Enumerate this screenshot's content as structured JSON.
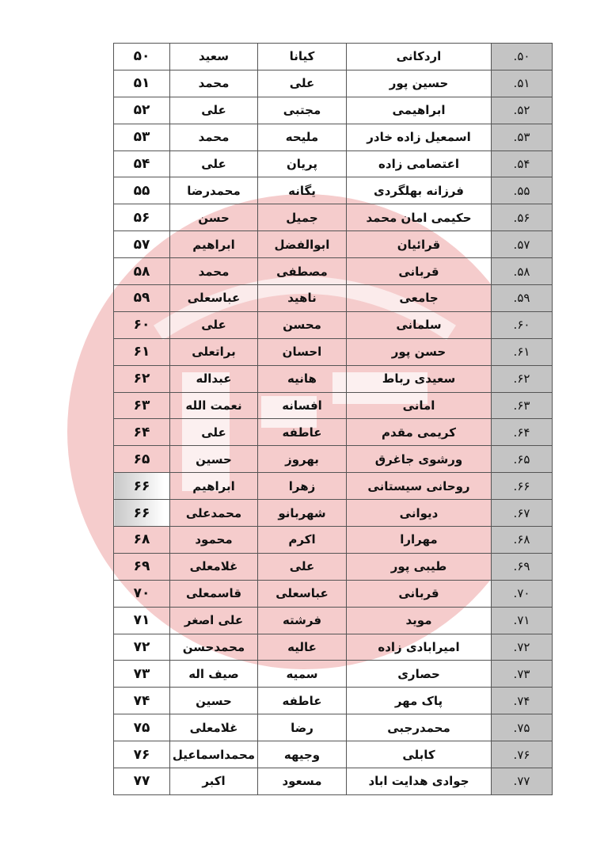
{
  "watermark": {
    "color": "#e06060"
  },
  "rows": [
    {
      "idx": "۵۰.",
      "last": "اردکانی",
      "first": "کیانا",
      "father": "سعید",
      "num": "۵۰"
    },
    {
      "idx": "۵۱.",
      "last": "حسین پور",
      "first": "علی",
      "father": "محمد",
      "num": "۵۱"
    },
    {
      "idx": "۵۲.",
      "last": "ابراهیمی",
      "first": "مجتبی",
      "father": "علی",
      "num": "۵۲"
    },
    {
      "idx": "۵۳.",
      "last": "اسمعیل زاده خادر",
      "first": "ملیحه",
      "father": "محمد",
      "num": "۵۳"
    },
    {
      "idx": "۵۴.",
      "last": "اعتصامی زاده",
      "first": "پریان",
      "father": "علی",
      "num": "۵۴"
    },
    {
      "idx": "۵۵.",
      "last": "فرزانه بهلگردی",
      "first": "یگانه",
      "father": "محمدرضا",
      "num": "۵۵"
    },
    {
      "idx": "۵۶.",
      "last": "حکیمی امان محمد",
      "first": "جمیل",
      "father": "حسن",
      "num": "۵۶"
    },
    {
      "idx": "۵۷.",
      "last": "قرائیان",
      "first": "ابوالفضل",
      "father": "ابراهیم",
      "num": "۵۷"
    },
    {
      "idx": "۵۸.",
      "last": "قربانی",
      "first": "مصطفی",
      "father": "محمد",
      "num": "۵۸"
    },
    {
      "idx": "۵۹.",
      "last": "جامعی",
      "first": "ناهید",
      "father": "عباسعلی",
      "num": "۵۹"
    },
    {
      "idx": "۶۰.",
      "last": "سلمانی",
      "first": "محسن",
      "father": "علی",
      "num": "۶۰"
    },
    {
      "idx": "۶۱.",
      "last": "حسن پور",
      "first": "احسان",
      "father": "براتعلی",
      "num": "۶۱"
    },
    {
      "idx": "۶۲.",
      "last": "سعیدی رباط",
      "first": "هانیه",
      "father": "عبداله",
      "num": "۶۲"
    },
    {
      "idx": "۶۳.",
      "last": "امانی",
      "first": "افسانه",
      "father": "نعمت الله",
      "num": "۶۳"
    },
    {
      "idx": "۶۴.",
      "last": "کریمی مقدم",
      "first": "عاطفه",
      "father": "علی",
      "num": "۶۴"
    },
    {
      "idx": "۶۵.",
      "last": "ورشوی جاغرق",
      "first": "بهروز",
      "father": "حسین",
      "num": "۶۵"
    },
    {
      "idx": "۶۶.",
      "last": "روحانی سیستانی",
      "first": "زهرا",
      "father": "ابراهیم",
      "num": "۶۶",
      "shade": true
    },
    {
      "idx": "۶۷.",
      "last": "دیوانی",
      "first": "شهربانو",
      "father": "محمدعلی",
      "num": "۶۶",
      "shade": true
    },
    {
      "idx": "۶۸.",
      "last": "مهرارا",
      "first": "اکرم",
      "father": "محمود",
      "num": "۶۸"
    },
    {
      "idx": "۶۹.",
      "last": "طیبی پور",
      "first": "علی",
      "father": "غلامعلی",
      "num": "۶۹"
    },
    {
      "idx": "۷۰.",
      "last": "قربانی",
      "first": "عباسعلی",
      "father": "قاسمعلی",
      "num": "۷۰"
    },
    {
      "idx": "۷۱.",
      "last": "موید",
      "first": "فرشته",
      "father": "علی اصغر",
      "num": "۷۱"
    },
    {
      "idx": "۷۲.",
      "last": "امیرابادی زاده",
      "first": "عالیه",
      "father": "محمدحسن",
      "num": "۷۲"
    },
    {
      "idx": "۷۳.",
      "last": "حصاری",
      "first": "سمیه",
      "father": "صیف اله",
      "num": "۷۳"
    },
    {
      "idx": "۷۴.",
      "last": "پاک مهر",
      "first": "عاطفه",
      "father": "حسین",
      "num": "۷۴"
    },
    {
      "idx": "۷۵.",
      "last": "محمدرجبی",
      "first": "رضا",
      "father": "غلامعلی",
      "num": "۷۵"
    },
    {
      "idx": "۷۶.",
      "last": "کابلی",
      "first": "وجیهه",
      "father": "محمداسماعیل",
      "num": "۷۶"
    },
    {
      "idx": "۷۷.",
      "last": "جوادی هدایت اباد",
      "first": "مسعود",
      "father": "اکبر",
      "num": "۷۷"
    }
  ]
}
